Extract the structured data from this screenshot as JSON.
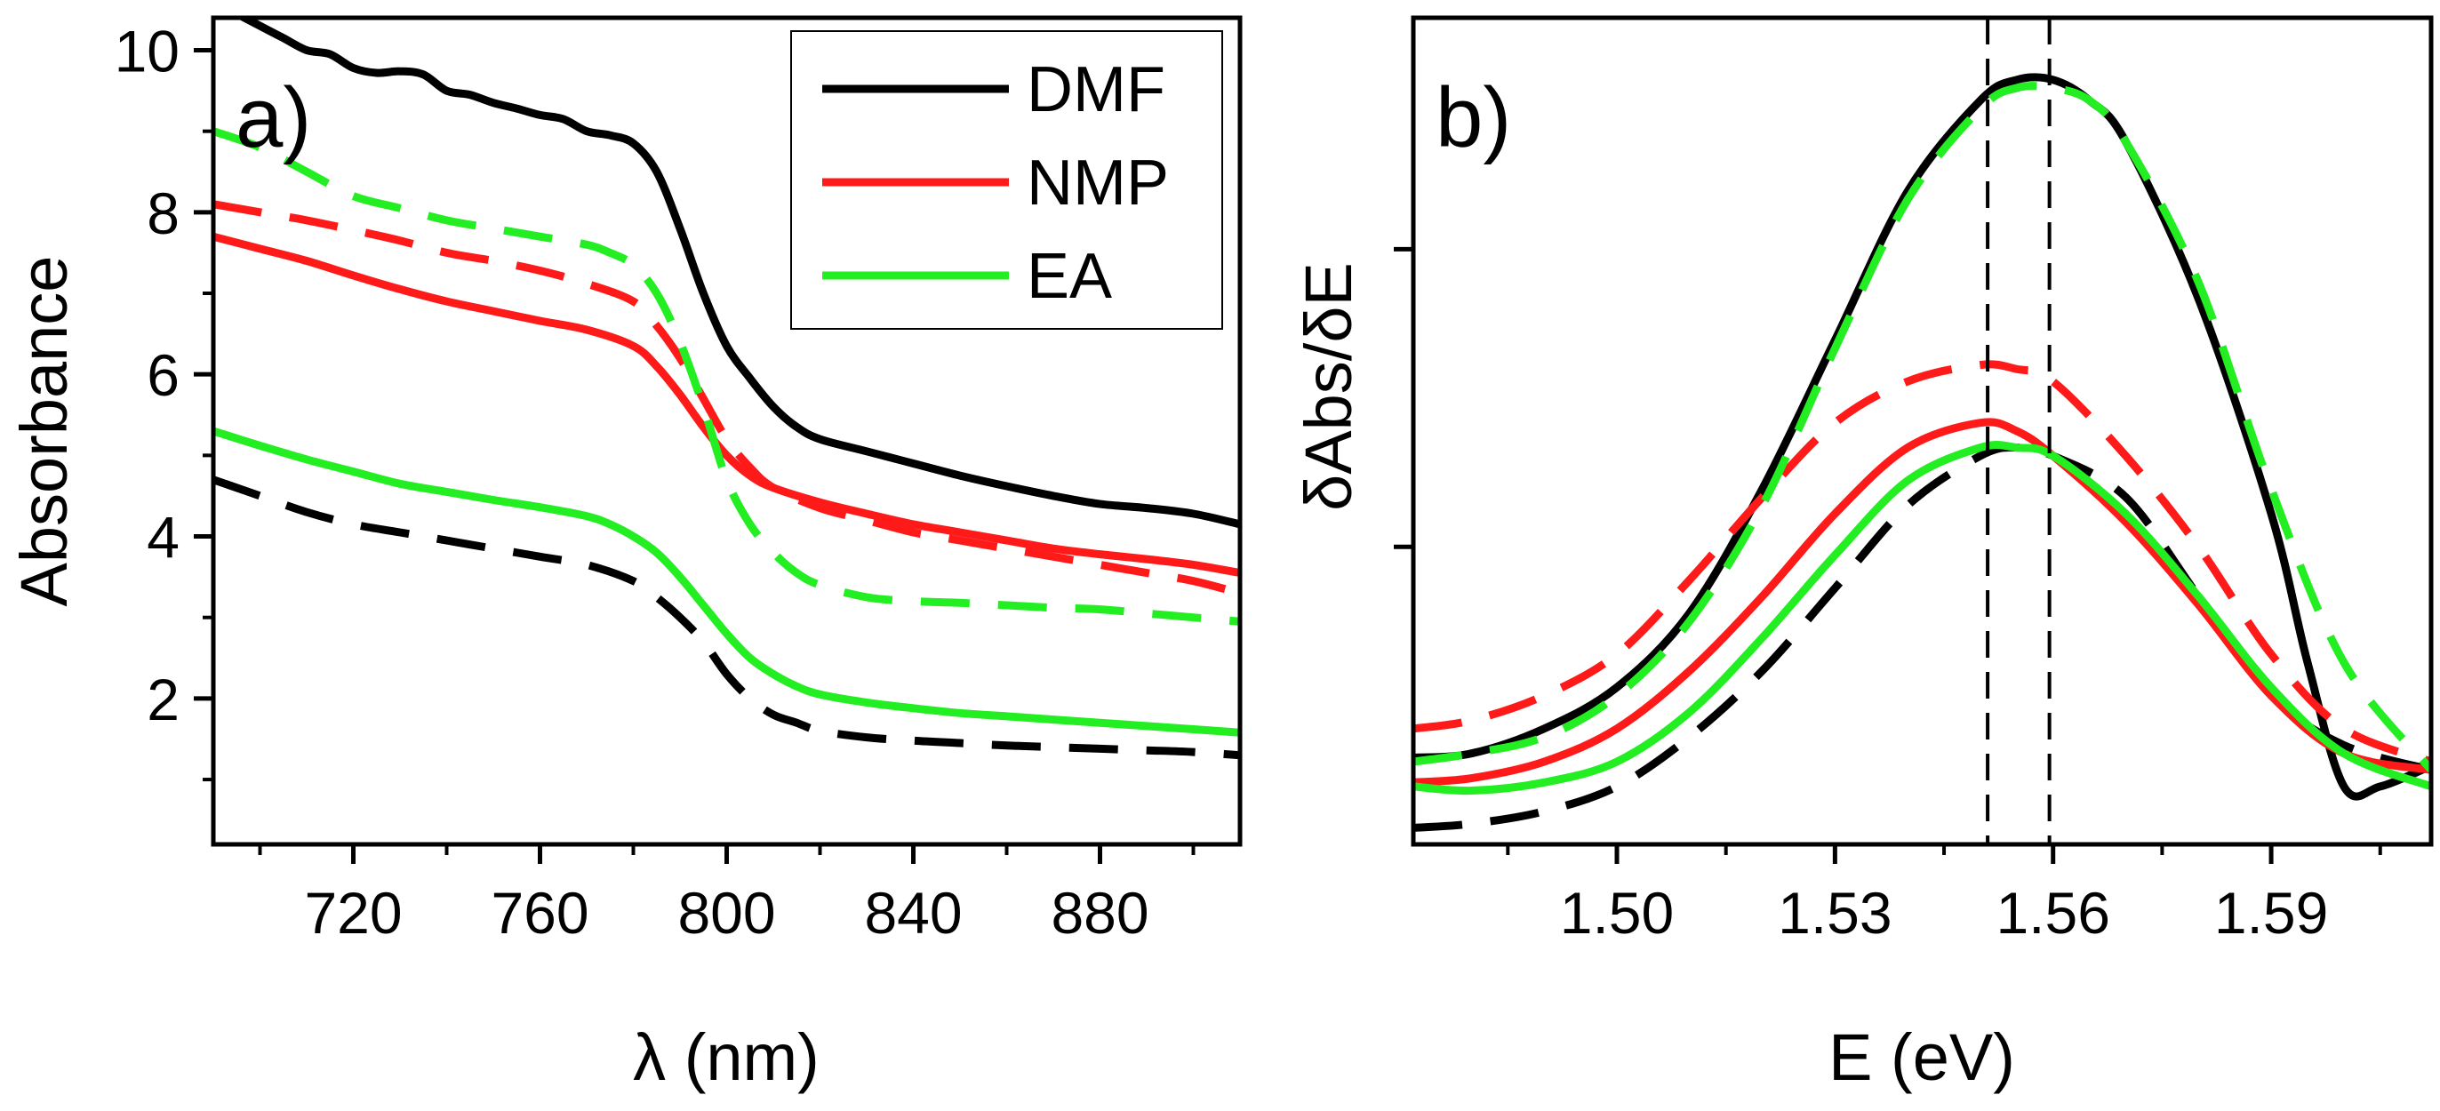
{
  "figure": {
    "colors": {
      "DMF": "#000000",
      "NMP": "#ff1a1a",
      "EA": "#22ee22"
    }
  },
  "chart_data": [
    {
      "type": "line",
      "panel_label": "a)",
      "title": "",
      "xlabel": "λ (nm)",
      "ylabel": "Absorbance",
      "xlim": [
        690,
        910
      ],
      "ylim": [
        0.2,
        10.4
      ],
      "xticks": [
        720,
        760,
        800,
        840,
        880
      ],
      "xtick_labels": [
        "720",
        "760",
        "800",
        "840",
        "880"
      ],
      "yticks": [
        2,
        4,
        6,
        8,
        10
      ],
      "ytick_labels": [
        "2",
        "4",
        "6",
        "8",
        "10"
      ],
      "legend": {
        "position": "top-right",
        "entries": [
          {
            "label": "DMF",
            "color": "#000000"
          },
          {
            "label": "NMP",
            "color": "#ff1a1a"
          },
          {
            "label": "EA",
            "color": "#22ee22"
          }
        ]
      },
      "series": [
        {
          "name": "DMF",
          "style": "solid",
          "color": "#000000",
          "x": [
            690,
            700,
            705,
            710,
            715,
            720,
            725,
            730,
            735,
            740,
            745,
            750,
            755,
            760,
            765,
            770,
            775,
            780,
            785,
            790,
            795,
            800,
            805,
            810,
            815,
            820,
            830,
            840,
            850,
            860,
            870,
            880,
            890,
            900,
            910
          ],
          "y": [
            10.6,
            10.3,
            10.15,
            10.0,
            9.95,
            9.78,
            9.72,
            9.74,
            9.7,
            9.5,
            9.45,
            9.35,
            9.28,
            9.2,
            9.15,
            9.0,
            8.95,
            8.85,
            8.5,
            7.8,
            7.0,
            6.35,
            5.95,
            5.6,
            5.35,
            5.2,
            5.05,
            4.9,
            4.75,
            4.62,
            4.5,
            4.4,
            4.35,
            4.28,
            4.15
          ]
        },
        {
          "name": "DMF",
          "style": "dashed",
          "color": "#000000",
          "x": [
            690,
            700,
            710,
            720,
            730,
            740,
            750,
            760,
            770,
            780,
            785,
            790,
            795,
            800,
            805,
            810,
            815,
            820,
            830,
            840,
            850,
            860,
            870,
            880,
            890,
            900,
            910
          ],
          "y": [
            4.7,
            4.5,
            4.3,
            4.15,
            4.05,
            3.95,
            3.85,
            3.75,
            3.65,
            3.45,
            3.25,
            3.0,
            2.7,
            2.3,
            2.0,
            1.8,
            1.7,
            1.6,
            1.52,
            1.48,
            1.45,
            1.42,
            1.4,
            1.38,
            1.36,
            1.34,
            1.3
          ]
        },
        {
          "name": "NMP",
          "style": "solid",
          "color": "#ff1a1a",
          "x": [
            690,
            700,
            710,
            720,
            730,
            740,
            750,
            760,
            770,
            780,
            785,
            790,
            795,
            800,
            805,
            810,
            820,
            830,
            840,
            850,
            860,
            870,
            880,
            890,
            900,
            910
          ],
          "y": [
            7.7,
            7.55,
            7.4,
            7.22,
            7.05,
            6.9,
            6.78,
            6.66,
            6.55,
            6.35,
            6.1,
            5.75,
            5.35,
            5.0,
            4.75,
            4.6,
            4.42,
            4.28,
            4.15,
            4.05,
            3.95,
            3.85,
            3.78,
            3.72,
            3.65,
            3.55
          ]
        },
        {
          "name": "NMP",
          "style": "dashed",
          "color": "#ff1a1a",
          "x": [
            690,
            700,
            710,
            720,
            730,
            740,
            750,
            760,
            770,
            780,
            785,
            790,
            795,
            800,
            805,
            810,
            820,
            830,
            840,
            850,
            860,
            870,
            880,
            890,
            900,
            910
          ],
          "y": [
            8.1,
            8.0,
            7.9,
            7.78,
            7.65,
            7.5,
            7.4,
            7.28,
            7.12,
            6.9,
            6.6,
            6.2,
            5.7,
            5.2,
            4.85,
            4.6,
            4.35,
            4.2,
            4.05,
            3.95,
            3.85,
            3.75,
            3.65,
            3.55,
            3.45,
            3.3
          ]
        },
        {
          "name": "EA",
          "style": "solid",
          "color": "#22ee22",
          "x": [
            690,
            700,
            710,
            720,
            730,
            740,
            750,
            760,
            770,
            775,
            780,
            785,
            790,
            795,
            800,
            805,
            810,
            815,
            820,
            830,
            840,
            850,
            860,
            870,
            880,
            890,
            900,
            910
          ],
          "y": [
            5.3,
            5.12,
            4.95,
            4.8,
            4.65,
            4.55,
            4.45,
            4.36,
            4.25,
            4.15,
            4.0,
            3.8,
            3.5,
            3.15,
            2.8,
            2.5,
            2.3,
            2.15,
            2.05,
            1.95,
            1.88,
            1.82,
            1.78,
            1.74,
            1.7,
            1.66,
            1.62,
            1.58
          ]
        },
        {
          "name": "EA",
          "style": "dashed",
          "color": "#22ee22",
          "x": [
            690,
            700,
            710,
            720,
            730,
            740,
            750,
            760,
            770,
            775,
            780,
            785,
            790,
            795,
            800,
            805,
            810,
            815,
            820,
            830,
            840,
            850,
            860,
            870,
            880,
            890,
            900,
            910
          ],
          "y": [
            9.0,
            8.8,
            8.5,
            8.2,
            8.05,
            7.9,
            7.8,
            7.7,
            7.6,
            7.5,
            7.35,
            7.0,
            6.4,
            5.6,
            4.7,
            4.15,
            3.8,
            3.55,
            3.4,
            3.25,
            3.2,
            3.18,
            3.15,
            3.12,
            3.1,
            3.05,
            3.0,
            2.95
          ]
        }
      ]
    },
    {
      "type": "line",
      "panel_label": "b)",
      "title": "",
      "xlabel": "E (eV)",
      "ylabel": "δAbs/δE",
      "xlim": [
        1.472,
        1.612
      ],
      "ylim": [
        0,
        1
      ],
      "xticks": [
        1.5,
        1.53,
        1.56,
        1.59
      ],
      "xtick_labels": [
        "1.50",
        "1.53",
        "1.56",
        "1.59"
      ],
      "yticks": [
        0.36,
        0.72
      ],
      "ytick_labels": [
        "",
        ""
      ],
      "vertical_lines": [
        1.551,
        1.5595
      ],
      "series": [
        {
          "name": "DMF",
          "style": "solid",
          "color": "#000000",
          "x": [
            1.472,
            1.48,
            1.49,
            1.5,
            1.51,
            1.52,
            1.53,
            1.54,
            1.55,
            1.555,
            1.56,
            1.565,
            1.57,
            1.58,
            1.59,
            1.595,
            1.6,
            1.605,
            1.612
          ],
          "y": [
            0.105,
            0.11,
            0.14,
            0.19,
            0.28,
            0.43,
            0.61,
            0.79,
            0.9,
            0.925,
            0.925,
            0.9,
            0.85,
            0.66,
            0.4,
            0.22,
            0.07,
            0.07,
            0.095
          ]
        },
        {
          "name": "DMF",
          "style": "dashed",
          "color": "#000000",
          "x": [
            1.472,
            1.48,
            1.49,
            1.5,
            1.51,
            1.52,
            1.53,
            1.54,
            1.55,
            1.555,
            1.56,
            1.57,
            1.58,
            1.59,
            1.6,
            1.612
          ],
          "y": [
            0.02,
            0.025,
            0.04,
            0.07,
            0.13,
            0.21,
            0.31,
            0.41,
            0.47,
            0.48,
            0.47,
            0.42,
            0.3,
            0.18,
            0.12,
            0.09
          ]
        },
        {
          "name": "NMP",
          "style": "solid",
          "color": "#ff1a1a",
          "x": [
            1.472,
            1.48,
            1.49,
            1.5,
            1.51,
            1.52,
            1.53,
            1.54,
            1.55,
            1.555,
            1.56,
            1.57,
            1.58,
            1.59,
            1.6,
            1.612
          ],
          "y": [
            0.075,
            0.08,
            0.1,
            0.14,
            0.21,
            0.3,
            0.4,
            0.48,
            0.51,
            0.5,
            0.47,
            0.39,
            0.29,
            0.18,
            0.11,
            0.09
          ]
        },
        {
          "name": "NMP",
          "style": "dashed",
          "color": "#ff1a1a",
          "x": [
            1.472,
            1.48,
            1.49,
            1.5,
            1.51,
            1.52,
            1.53,
            1.54,
            1.55,
            1.555,
            1.56,
            1.57,
            1.58,
            1.59,
            1.6,
            1.612
          ],
          "y": [
            0.14,
            0.15,
            0.18,
            0.23,
            0.32,
            0.42,
            0.51,
            0.56,
            0.58,
            0.575,
            0.56,
            0.47,
            0.36,
            0.23,
            0.14,
            0.1
          ]
        },
        {
          "name": "EA",
          "style": "solid",
          "color": "#22ee22",
          "x": [
            1.472,
            1.48,
            1.49,
            1.5,
            1.51,
            1.52,
            1.53,
            1.54,
            1.55,
            1.555,
            1.56,
            1.57,
            1.58,
            1.59,
            1.6,
            1.612
          ],
          "y": [
            0.07,
            0.065,
            0.075,
            0.1,
            0.16,
            0.25,
            0.35,
            0.44,
            0.48,
            0.48,
            0.47,
            0.4,
            0.3,
            0.19,
            0.11,
            0.07
          ]
        },
        {
          "name": "EA",
          "style": "dashed",
          "color": "#22ee22",
          "x": [
            1.472,
            1.48,
            1.49,
            1.5,
            1.51,
            1.52,
            1.53,
            1.54,
            1.55,
            1.555,
            1.56,
            1.565,
            1.57,
            1.58,
            1.59,
            1.6,
            1.612
          ],
          "y": [
            0.1,
            0.11,
            0.13,
            0.18,
            0.27,
            0.41,
            0.6,
            0.78,
            0.89,
            0.915,
            0.915,
            0.9,
            0.85,
            0.68,
            0.43,
            0.22,
            0.09
          ]
        }
      ]
    }
  ]
}
